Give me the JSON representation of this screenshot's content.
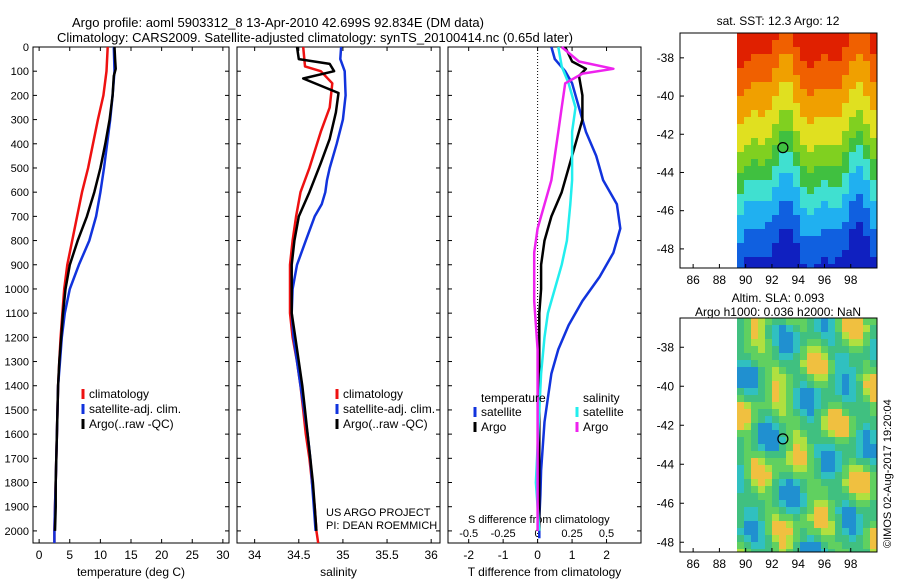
{
  "header": {
    "title_line1": "Argo profile: aoml 5903312_8 13-Apr-2010 42.699S 92.834E (DM data)",
    "title_line2": "Climatology: CARS2009. Satellite-adjusted climatology: synTS_20100414.nc (0.65d later)"
  },
  "side_label": "©IMOS 02-Aug-2017 19:20:04",
  "colors": {
    "red": "#ee1111",
    "blue": "#1133dd",
    "black": "#000000",
    "cyan": "#22eeee",
    "magenta": "#ee22ee"
  },
  "chart_data": [
    {
      "id": "temperature",
      "type": "line",
      "xlabel": "temperature (deg C)",
      "ylabel": "",
      "xlim": [
        -1,
        31
      ],
      "ylim": [
        2050,
        0
      ],
      "xticks": [
        0,
        5,
        10,
        15,
        20,
        25,
        30
      ],
      "yticks": [
        0,
        100,
        200,
        300,
        400,
        500,
        600,
        700,
        800,
        900,
        1000,
        1100,
        1200,
        1300,
        1400,
        1500,
        1600,
        1700,
        1800,
        1900,
        2000
      ],
      "legend": [
        "climatology",
        "satellite-adj. clim.",
        "Argo(..raw -QC)"
      ],
      "series": [
        {
          "name": "climatology",
          "color": "red",
          "points": [
            [
              11.2,
              0
            ],
            [
              11.0,
              100
            ],
            [
              10.5,
              200
            ],
            [
              9.6,
              300
            ],
            [
              8.8,
              400
            ],
            [
              8.0,
              500
            ],
            [
              7.0,
              600
            ],
            [
              6.2,
              700
            ],
            [
              5.4,
              800
            ],
            [
              4.6,
              900
            ],
            [
              4.1,
              1000
            ],
            [
              3.8,
              1100
            ],
            [
              3.5,
              1200
            ],
            [
              3.3,
              1300
            ],
            [
              3.1,
              1400
            ],
            [
              3.0,
              1500
            ],
            [
              2.9,
              1600
            ],
            [
              2.8,
              1700
            ],
            [
              2.7,
              1800
            ],
            [
              2.6,
              1900
            ],
            [
              2.5,
              2000
            ],
            [
              2.5,
              2050
            ]
          ]
        },
        {
          "name": "satellite-adj. clim.",
          "color": "blue",
          "points": [
            [
              12.2,
              0
            ],
            [
              12.3,
              100
            ],
            [
              12.0,
              200
            ],
            [
              11.6,
              300
            ],
            [
              11.1,
              400
            ],
            [
              10.6,
              500
            ],
            [
              10.0,
              600
            ],
            [
              9.3,
              700
            ],
            [
              8.2,
              800
            ],
            [
              6.5,
              900
            ],
            [
              5.0,
              1000
            ],
            [
              4.2,
              1100
            ],
            [
              3.7,
              1200
            ],
            [
              3.4,
              1300
            ],
            [
              3.1,
              1400
            ],
            [
              3.0,
              1500
            ],
            [
              2.9,
              1600
            ],
            [
              2.8,
              1700
            ],
            [
              2.7,
              1800
            ],
            [
              2.6,
              1900
            ],
            [
              2.5,
              2000
            ],
            [
              2.5,
              2050
            ]
          ]
        },
        {
          "name": "Argo(..raw -QC)",
          "color": "black",
          "points": [
            [
              12.3,
              0
            ],
            [
              12.4,
              50
            ],
            [
              12.5,
              90
            ],
            [
              12.2,
              120
            ],
            [
              12.0,
              200
            ],
            [
              11.5,
              300
            ],
            [
              10.8,
              400
            ],
            [
              10.0,
              500
            ],
            [
              9.0,
              600
            ],
            [
              7.8,
              700
            ],
            [
              6.3,
              800
            ],
            [
              5.0,
              900
            ],
            [
              4.3,
              1000
            ],
            [
              3.9,
              1100
            ],
            [
              3.6,
              1200
            ],
            [
              3.3,
              1300
            ],
            [
              3.1,
              1400
            ],
            [
              3.0,
              1500
            ],
            [
              2.9,
              1600
            ],
            [
              2.8,
              1700
            ],
            [
              2.7,
              1800
            ],
            [
              2.7,
              1900
            ],
            [
              2.6,
              2000
            ]
          ]
        }
      ]
    },
    {
      "id": "salinity",
      "type": "line",
      "xlabel": "salinity",
      "ylabel": "",
      "xlim": [
        33.8,
        36.1
      ],
      "ylim": [
        2050,
        0
      ],
      "xticks": [
        34,
        34.5,
        35,
        35.5,
        36
      ],
      "yticks": [],
      "legend": [
        "climatology",
        "satellite-adj. clim.",
        "Argo(..raw -QC)"
      ],
      "annotation": [
        "US ARGO PROJECT",
        "PI: DEAN ROEMMICH"
      ],
      "series": [
        {
          "name": "climatology",
          "color": "red",
          "points": [
            [
              34.55,
              0
            ],
            [
              34.57,
              80
            ],
            [
              34.75,
              100
            ],
            [
              34.88,
              150
            ],
            [
              34.85,
              250
            ],
            [
              34.75,
              350
            ],
            [
              34.62,
              500
            ],
            [
              34.52,
              600
            ],
            [
              34.47,
              700
            ],
            [
              34.43,
              800
            ],
            [
              34.4,
              900
            ],
            [
              34.4,
              1000
            ],
            [
              34.4,
              1100
            ],
            [
              34.43,
              1200
            ],
            [
              34.48,
              1300
            ],
            [
              34.52,
              1400
            ],
            [
              34.55,
              1500
            ],
            [
              34.58,
              1600
            ],
            [
              34.62,
              1700
            ],
            [
              34.65,
              1800
            ],
            [
              34.68,
              1900
            ],
            [
              34.7,
              2000
            ],
            [
              34.72,
              2050
            ]
          ]
        },
        {
          "name": "satellite-adj. clim.",
          "color": "blue",
          "points": [
            [
              34.98,
              0
            ],
            [
              34.97,
              50
            ],
            [
              35.02,
              100
            ],
            [
              35.03,
              200
            ],
            [
              35.0,
              300
            ],
            [
              34.93,
              400
            ],
            [
              34.85,
              500
            ],
            [
              34.82,
              550
            ],
            [
              34.8,
              600
            ],
            [
              34.76,
              650
            ],
            [
              34.68,
              700
            ],
            [
              34.58,
              800
            ],
            [
              34.48,
              900
            ],
            [
              34.43,
              1000
            ],
            [
              34.42,
              1100
            ],
            [
              34.44,
              1200
            ],
            [
              34.48,
              1300
            ],
            [
              34.52,
              1400
            ],
            [
              34.56,
              1500
            ],
            [
              34.6,
              1600
            ],
            [
              34.63,
              1700
            ],
            [
              34.65,
              1800
            ],
            [
              34.67,
              1900
            ],
            [
              34.69,
              2000
            ]
          ]
        },
        {
          "name": "Argo(..raw -QC)",
          "color": "black",
          "points": [
            [
              34.48,
              0
            ],
            [
              34.5,
              50
            ],
            [
              34.85,
              70
            ],
            [
              34.9,
              100
            ],
            [
              34.55,
              130
            ],
            [
              34.95,
              190
            ],
            [
              34.92,
              270
            ],
            [
              34.85,
              380
            ],
            [
              34.75,
              480
            ],
            [
              34.62,
              600
            ],
            [
              34.5,
              700
            ],
            [
              34.45,
              800
            ],
            [
              34.42,
              900
            ],
            [
              34.42,
              1000
            ],
            [
              34.42,
              1100
            ],
            [
              34.46,
              1200
            ],
            [
              34.5,
              1300
            ],
            [
              34.54,
              1400
            ],
            [
              34.57,
              1500
            ],
            [
              34.6,
              1600
            ],
            [
              34.63,
              1700
            ],
            [
              34.66,
              1800
            ],
            [
              34.68,
              1900
            ],
            [
              34.7,
              2000
            ]
          ]
        }
      ]
    },
    {
      "id": "difference",
      "type": "line",
      "xlabel": "T difference from climatology",
      "xlabel_top": "S difference from climatology",
      "xlim": [
        -2.6,
        3.0
      ],
      "ylim": [
        2050,
        0
      ],
      "xticks": [
        -2,
        -1,
        0,
        1,
        2
      ],
      "xticks_S": [
        "-0.5",
        "-0.25",
        "0",
        "0.25",
        "0.5"
      ],
      "xticks_S_pos": [
        -2,
        -1,
        0,
        1,
        2
      ],
      "yticks": [],
      "legend_temperature_title": "temperature",
      "legend_salinity_title": "salinity",
      "legend_temperature": [
        "satellite",
        "Argo"
      ],
      "legend_salinity": [
        "satellite",
        "Argo"
      ],
      "series": [
        {
          "name": "satellite",
          "group": "temperature",
          "color": "blue",
          "points": [
            [
              0.4,
              0
            ],
            [
              0.5,
              50
            ],
            [
              0.8,
              100
            ],
            [
              1.0,
              150
            ],
            [
              1.2,
              250
            ],
            [
              1.4,
              350
            ],
            [
              1.7,
              450
            ],
            [
              1.9,
              550
            ],
            [
              2.3,
              650
            ],
            [
              2.4,
              750
            ],
            [
              2.2,
              850
            ],
            [
              1.8,
              950
            ],
            [
              1.3,
              1050
            ],
            [
              0.9,
              1150
            ],
            [
              0.6,
              1250
            ],
            [
              0.4,
              1350
            ],
            [
              0.3,
              1450
            ],
            [
              0.2,
              1550
            ],
            [
              0.15,
              1650
            ],
            [
              0.1,
              1750
            ],
            [
              0.08,
              1850
            ],
            [
              0.05,
              1950
            ],
            [
              0.05,
              2030
            ]
          ]
        },
        {
          "name": "Argo",
          "group": "temperature",
          "color": "black",
          "points": [
            [
              0.8,
              0
            ],
            [
              1.0,
              60
            ],
            [
              1.4,
              90
            ],
            [
              1.2,
              120
            ],
            [
              1.3,
              200
            ],
            [
              1.3,
              300
            ],
            [
              1.1,
              400
            ],
            [
              0.9,
              500
            ],
            [
              0.7,
              600
            ],
            [
              0.4,
              700
            ],
            [
              0.2,
              800
            ],
            [
              0.1,
              900
            ],
            [
              0.1,
              1000
            ],
            [
              0.05,
              1100
            ],
            [
              0.05,
              1200
            ],
            [
              0.05,
              1400
            ],
            [
              0.05,
              1600
            ],
            [
              0.05,
              1800
            ],
            [
              0.05,
              2000
            ]
          ]
        },
        {
          "name": "satellite",
          "group": "salinity",
          "color": "cyan",
          "points": [
            [
              0.6,
              0
            ],
            [
              0.7,
              80
            ],
            [
              0.9,
              150
            ],
            [
              1.1,
              250
            ],
            [
              1.0,
              350
            ],
            [
              1.0,
              450
            ],
            [
              1.0,
              550
            ],
            [
              0.95,
              650
            ],
            [
              0.85,
              800
            ],
            [
              0.7,
              900
            ],
            [
              0.5,
              1000
            ],
            [
              0.3,
              1100
            ],
            [
              0.2,
              1200
            ],
            [
              0.1,
              1350
            ],
            [
              0.05,
              1500
            ],
            [
              0.0,
              1650
            ],
            [
              -0.05,
              1800
            ],
            [
              0.0,
              1900
            ],
            [
              0.05,
              2000
            ]
          ]
        },
        {
          "name": "Argo",
          "group": "salinity",
          "color": "magenta",
          "points": [
            [
              0.7,
              0
            ],
            [
              1.2,
              60
            ],
            [
              2.2,
              90
            ],
            [
              1.3,
              110
            ],
            [
              0.8,
              150
            ],
            [
              0.7,
              250
            ],
            [
              0.6,
              350
            ],
            [
              0.5,
              450
            ],
            [
              0.4,
              550
            ],
            [
              0.2,
              650
            ],
            [
              0.0,
              750
            ],
            [
              -0.1,
              850
            ],
            [
              -0.1,
              950
            ],
            [
              -0.1,
              1050
            ],
            [
              -0.05,
              1150
            ],
            [
              0.0,
              1250
            ],
            [
              0.0,
              1400
            ],
            [
              0.0,
              1600
            ],
            [
              0.0,
              1800
            ],
            [
              0.0,
              2000
            ]
          ]
        }
      ]
    },
    {
      "id": "sst_map",
      "type": "heatmap",
      "title": "sat. SST: 12.3 Argo: 12",
      "xlim": [
        85,
        100
      ],
      "ylim": [
        -49,
        -36.7
      ],
      "xticks": [
        86,
        88,
        90,
        92,
        94,
        96,
        98
      ],
      "yticks": [
        -38,
        -40,
        -42,
        -44,
        -46,
        -48
      ],
      "marker": [
        92.834,
        -42.699
      ]
    },
    {
      "id": "sla_map",
      "type": "heatmap",
      "title": "Altim. SLA: 0.093",
      "subtitle": "Argo h1000: 0.036 h2000: NaN",
      "xlim": [
        85,
        100
      ],
      "ylim": [
        -48.5,
        -36.5
      ],
      "xticks": [
        86,
        88,
        90,
        92,
        94,
        96,
        98
      ],
      "yticks": [
        -38,
        -40,
        -42,
        -44,
        -46,
        -48
      ],
      "marker": [
        92.834,
        -42.699
      ]
    }
  ]
}
